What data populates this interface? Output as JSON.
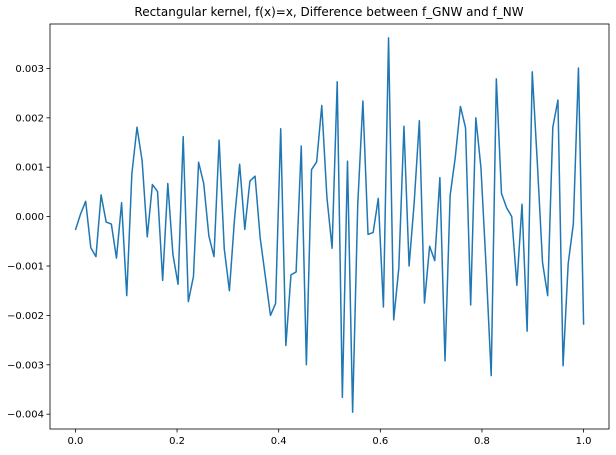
{
  "chart_data": {
    "type": "line",
    "title": "Rectangular kernel, f(x)=x, Difference between f_GNW and f_NW",
    "xlabel": "",
    "ylabel": "",
    "xlim": [
      -0.05,
      1.05
    ],
    "ylim": [
      -0.0043,
      0.0039
    ],
    "xticks": [
      0.0,
      0.2,
      0.4,
      0.6,
      0.8,
      1.0
    ],
    "xtick_labels": [
      "0.0",
      "0.2",
      "0.4",
      "0.6",
      "0.8",
      "1.0"
    ],
    "yticks": [
      -0.004,
      -0.003,
      -0.002,
      -0.001,
      0.0,
      0.001,
      0.002,
      0.003
    ],
    "ytick_labels": [
      "−0.004",
      "−0.003",
      "−0.002",
      "−0.001",
      "0.000",
      "0.001",
      "0.002",
      "0.003"
    ],
    "grid": false,
    "line_color": "#1f77b4",
    "series": [
      {
        "x": [
          0.0,
          0.0101,
          0.0202,
          0.0303,
          0.0404,
          0.0505,
          0.0606,
          0.0707,
          0.0808,
          0.0909,
          0.101,
          0.1111,
          0.1212,
          0.1313,
          0.1414,
          0.1515,
          0.1616,
          0.1717,
          0.1818,
          0.1919,
          0.202,
          0.2121,
          0.2222,
          0.2323,
          0.2424,
          0.2525,
          0.2626,
          0.2727,
          0.2828,
          0.2929,
          0.303,
          0.3131,
          0.3232,
          0.3333,
          0.3434,
          0.3535,
          0.3636,
          0.3737,
          0.3838,
          0.3939,
          0.404,
          0.4141,
          0.4242,
          0.4343,
          0.4444,
          0.4545,
          0.4646,
          0.4747,
          0.4848,
          0.4949,
          0.5051,
          0.5152,
          0.5253,
          0.5354,
          0.5455,
          0.5556,
          0.5657,
          0.5758,
          0.5859,
          0.596,
          0.6061,
          0.6162,
          0.6263,
          0.6364,
          0.6465,
          0.6566,
          0.6667,
          0.6768,
          0.6869,
          0.697,
          0.7071,
          0.7172,
          0.7273,
          0.7374,
          0.7475,
          0.7576,
          0.7677,
          0.7778,
          0.7879,
          0.798,
          0.8081,
          0.8182,
          0.8283,
          0.8384,
          0.8485,
          0.8586,
          0.8687,
          0.8788,
          0.8889,
          0.899,
          0.9091,
          0.9192,
          0.9293,
          0.9394,
          0.9495,
          0.9596,
          0.9697,
          0.9798,
          0.9899,
          1.0
        ],
        "y": [
          -0.00027,
          5e-05,
          0.00031,
          -0.00063,
          -0.00081,
          0.00044,
          -0.00011,
          -0.00015,
          -0.00084,
          0.00028,
          -0.0016,
          0.00087,
          0.00181,
          0.00113,
          -0.00041,
          0.00065,
          0.00051,
          -0.00129,
          0.00067,
          -0.00077,
          -0.00137,
          0.00162,
          -0.00172,
          -0.00121,
          0.0011,
          0.00067,
          -0.00039,
          -0.00081,
          0.00155,
          -0.00065,
          -0.0015,
          -5e-05,
          0.00106,
          -0.00026,
          0.00072,
          0.00082,
          -0.00043,
          -0.00121,
          -0.002,
          -0.00176,
          0.00178,
          -0.00261,
          -0.00118,
          -0.00112,
          0.00143,
          -0.003,
          0.00095,
          0.00111,
          0.00225,
          0.00039,
          -0.00064,
          0.00273,
          -0.00366,
          0.00112,
          -0.00396,
          0.00025,
          0.00234,
          -0.00036,
          -0.00032,
          0.00037,
          -0.00183,
          0.00362,
          -0.00209,
          -0.00104,
          0.00183,
          -0.001,
          0.00029,
          0.00194,
          -0.00175,
          -0.0006,
          -0.00089,
          0.00079,
          -0.00292,
          0.00043,
          0.0012,
          0.00223,
          0.0018,
          -0.00179,
          0.002,
          0.00099,
          -0.001,
          -0.00322,
          0.00279,
          0.00047,
          0.00018,
          0.0,
          -0.00139,
          0.00025,
          -0.00232,
          0.00293,
          0.00106,
          -0.00093,
          -0.0016,
          0.00181,
          0.00236,
          -0.00302,
          -0.00095,
          -0.00015,
          0.00301,
          -0.00219
        ]
      }
    ]
  }
}
